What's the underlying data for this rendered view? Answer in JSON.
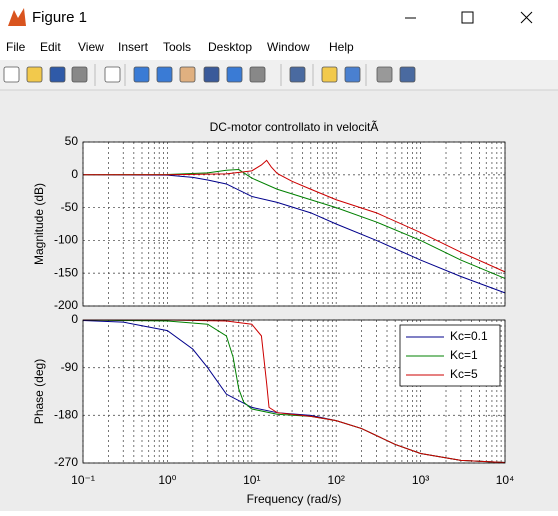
{
  "window": {
    "title": "Figure 1",
    "menu": [
      "File",
      "Edit",
      "View",
      "Insert",
      "Tools",
      "Desktop",
      "Window",
      "Help"
    ]
  },
  "chart_data": [
    {
      "type": "line",
      "title": "DC-motor controllato in velocitÃ",
      "ylabel": "Magnitude (dB)",
      "xscale": "log",
      "xlim": [
        0.1,
        10000
      ],
      "xticks": [
        0.1,
        1,
        10,
        100,
        1000,
        10000
      ],
      "ylim": [
        -200,
        50
      ],
      "yticks": [
        50,
        0,
        -50,
        -100,
        -150,
        -200
      ],
      "grid": true,
      "series": [
        {
          "color": "#00008b",
          "x": [
            0.1,
            1,
            2,
            3,
            5,
            10,
            20,
            50,
            100,
            300,
            1000,
            3000,
            10000
          ],
          "values": [
            0,
            -0.5,
            -4,
            -8,
            -14,
            -33,
            -42,
            -58,
            -75,
            -100,
            -130,
            -155,
            -180
          ]
        },
        {
          "color": "#008000",
          "x": [
            0.1,
            1,
            3,
            5,
            7,
            10,
            20,
            50,
            100,
            300,
            1000,
            3000,
            10000
          ],
          "values": [
            0,
            0.5,
            3,
            7,
            8,
            -5,
            -22,
            -38,
            -50,
            -72,
            -100,
            -130,
            -158
          ]
        },
        {
          "color": "#cc0000",
          "x": [
            0.1,
            1,
            5,
            10,
            13,
            15,
            17,
            20,
            30,
            50,
            100,
            300,
            1000,
            3000,
            10000
          ],
          "values": [
            0,
            0,
            1.5,
            6,
            15,
            22,
            12,
            2,
            -10,
            -22,
            -38,
            -58,
            -88,
            -118,
            -148
          ]
        }
      ]
    },
    {
      "type": "line",
      "ylabel": "Phase (deg)",
      "xlabel": "Frequency  (rad/s)",
      "xscale": "log",
      "xlim": [
        0.1,
        10000
      ],
      "xticks": [
        {
          "value": 0.1,
          "label": "10⁻¹"
        },
        {
          "value": 1,
          "label": "10⁰"
        },
        {
          "value": 10,
          "label": "10¹"
        },
        {
          "value": 100,
          "label": "10²"
        },
        {
          "value": 1000,
          "label": "10³"
        },
        {
          "value": 10000,
          "label": "10⁴"
        }
      ],
      "ylim": [
        -270,
        0
      ],
      "yticks": [
        0,
        -90,
        -180,
        -270
      ],
      "grid": true,
      "legend": "northeast",
      "series": [
        {
          "name": "Kc=0.1",
          "color": "#00008b",
          "x": [
            0.1,
            0.3,
            1,
            2,
            3,
            5,
            10,
            20,
            50,
            100,
            200,
            500,
            1000,
            3000,
            10000
          ],
          "values": [
            -1,
            -4,
            -20,
            -55,
            -90,
            -140,
            -165,
            -175,
            -180,
            -190,
            -205,
            -235,
            -252,
            -265,
            -269
          ]
        },
        {
          "name": "Kc=1",
          "color": "#008000",
          "x": [
            0.1,
            1,
            3,
            5,
            6,
            7,
            8,
            10,
            20,
            50,
            100,
            200,
            500,
            1000,
            3000,
            10000
          ],
          "values": [
            0,
            -2,
            -8,
            -30,
            -70,
            -130,
            -155,
            -168,
            -178,
            -182,
            -190,
            -205,
            -235,
            -252,
            -265,
            -269
          ]
        },
        {
          "name": "Kc=5",
          "color": "#cc0000",
          "x": [
            0.1,
            1,
            5,
            10,
            13,
            15,
            16,
            20,
            50,
            100,
            200,
            500,
            1000,
            3000,
            10000
          ],
          "values": [
            0,
            0,
            -2,
            -8,
            -30,
            -120,
            -165,
            -175,
            -182,
            -190,
            -205,
            -235,
            -252,
            -265,
            -269
          ]
        }
      ]
    }
  ]
}
